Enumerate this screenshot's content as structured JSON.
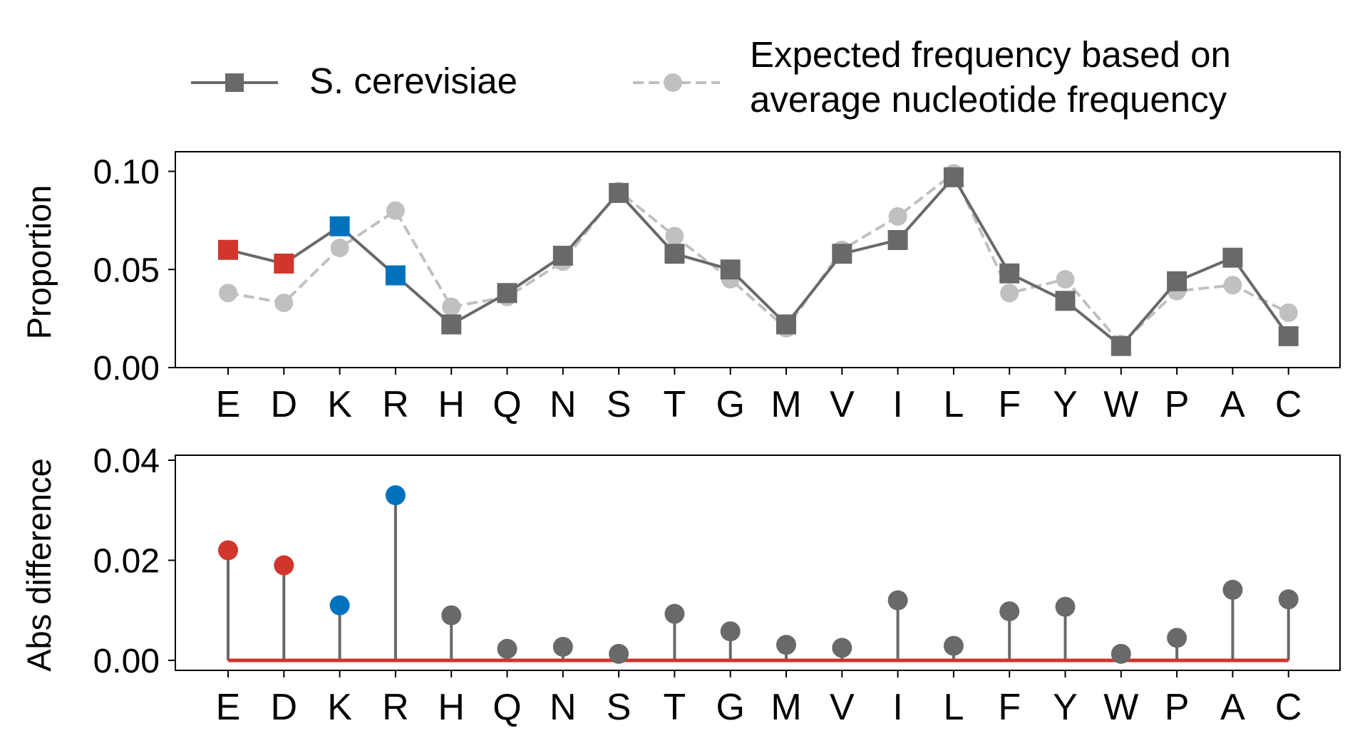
{
  "legend": {
    "series1_label": "S. cerevisiae",
    "series2_label_line1": "Expected frequency based on",
    "series2_label_line2": "average nucleotide frequency"
  },
  "colors": {
    "observed": "#696969",
    "expected": "#c0c0c0",
    "acidic": "#d1352b",
    "basic": "#0072bd",
    "baseline": "#d1352b"
  },
  "chart_data": [
    {
      "type": "line",
      "ylabel": "Proportion",
      "categories": [
        "E",
        "D",
        "K",
        "R",
        "H",
        "Q",
        "N",
        "S",
        "T",
        "G",
        "M",
        "V",
        "I",
        "L",
        "F",
        "Y",
        "W",
        "P",
        "A",
        "C"
      ],
      "ylim": [
        0,
        0.11
      ],
      "yticks": [
        "0.00",
        "0.05",
        "0.10"
      ],
      "ytick_values": [
        0,
        0.05,
        0.1
      ],
      "series": [
        {
          "name": "S. cerevisiae",
          "marker": "square",
          "line": "solid",
          "values": [
            0.06,
            0.053,
            0.072,
            0.047,
            0.022,
            0.038,
            0.057,
            0.089,
            0.058,
            0.05,
            0.022,
            0.058,
            0.065,
            0.097,
            0.048,
            0.034,
            0.011,
            0.044,
            0.056,
            0.016
          ]
        },
        {
          "name": "Expected frequency based on average nucleotide frequency",
          "marker": "circle",
          "line": "dashed",
          "values": [
            0.038,
            0.033,
            0.061,
            0.08,
            0.031,
            0.036,
            0.054,
            0.09,
            0.067,
            0.045,
            0.02,
            0.06,
            0.077,
            0.099,
            0.038,
            0.045,
            0.012,
            0.039,
            0.042,
            0.028
          ]
        }
      ],
      "highlight": {
        "acidic": [
          "E",
          "D"
        ],
        "basic": [
          "K",
          "R"
        ]
      }
    },
    {
      "type": "stem",
      "ylabel": "Abs difference",
      "categories": [
        "E",
        "D",
        "K",
        "R",
        "H",
        "Q",
        "N",
        "S",
        "T",
        "G",
        "M",
        "V",
        "I",
        "L",
        "F",
        "Y",
        "W",
        "P",
        "A",
        "C"
      ],
      "ylim": [
        -0.002,
        0.041
      ],
      "yticks": [
        "0.00",
        "0.02",
        "0.04"
      ],
      "ytick_values": [
        0,
        0.02,
        0.04
      ],
      "values": [
        0.022,
        0.019,
        0.011,
        0.033,
        0.009,
        0.0023,
        0.0027,
        0.0013,
        0.0093,
        0.0058,
        0.0031,
        0.0025,
        0.012,
        0.0029,
        0.0098,
        0.0107,
        0.0013,
        0.0045,
        0.0141,
        0.0122
      ],
      "baseline": 0
    }
  ]
}
